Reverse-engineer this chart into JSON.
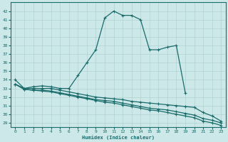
{
  "xlabel": "Humidex (Indice chaleur)",
  "bg_color": "#cce8e8",
  "line_color": "#1a6b6b",
  "grid_color": "#aacccc",
  "xlim": [
    -0.5,
    23.5
  ],
  "ylim": [
    28.5,
    43.0
  ],
  "yticks": [
    29,
    30,
    31,
    32,
    33,
    34,
    35,
    36,
    37,
    38,
    39,
    40,
    41,
    42
  ],
  "xticks": [
    0,
    1,
    2,
    3,
    4,
    5,
    6,
    7,
    8,
    9,
    10,
    11,
    12,
    13,
    14,
    15,
    16,
    17,
    18,
    19,
    20,
    21,
    22,
    23
  ],
  "curve1_x": [
    0,
    1,
    2,
    3,
    4,
    5,
    6,
    7,
    8,
    9,
    10,
    11,
    12,
    13,
    14,
    15,
    16,
    17,
    18,
    19
  ],
  "curve1_y": [
    34,
    33,
    33.2,
    33.3,
    33.2,
    33.0,
    33.0,
    34.5,
    36.0,
    37.5,
    41.2,
    42.0,
    41.5,
    41.5,
    41.0,
    37.5,
    37.5,
    37.8,
    38.0,
    32.5
  ],
  "curve2_x": [
    0,
    1,
    2,
    3,
    4,
    5,
    6,
    7,
    8,
    9,
    10,
    11,
    12,
    13,
    14,
    15,
    16,
    17,
    18,
    19,
    20,
    21,
    22,
    23
  ],
  "curve2_y": [
    33.5,
    33.0,
    33.0,
    33.0,
    33.0,
    32.8,
    32.6,
    32.4,
    32.2,
    32.0,
    31.9,
    31.8,
    31.7,
    31.5,
    31.4,
    31.3,
    31.2,
    31.1,
    31.0,
    30.9,
    30.8,
    30.2,
    29.8,
    29.2
  ],
  "curve3_x": [
    0,
    1,
    2,
    3,
    4,
    5,
    6,
    7,
    8,
    9,
    10,
    11,
    12,
    13,
    14,
    15,
    16,
    17,
    18,
    19,
    20,
    21,
    22,
    23
  ],
  "curve3_y": [
    33.5,
    32.9,
    32.8,
    32.8,
    32.7,
    32.5,
    32.3,
    32.1,
    31.9,
    31.7,
    31.6,
    31.5,
    31.3,
    31.1,
    30.9,
    30.7,
    30.6,
    30.5,
    30.3,
    30.1,
    29.9,
    29.5,
    29.3,
    29.0
  ],
  "curve4_x": [
    0,
    1,
    2,
    3,
    4,
    5,
    6,
    7,
    8,
    9,
    10,
    11,
    12,
    13,
    14,
    15,
    16,
    17,
    18,
    19,
    20,
    21,
    22,
    23
  ],
  "curve4_y": [
    33.5,
    32.9,
    32.8,
    32.7,
    32.6,
    32.4,
    32.2,
    32.0,
    31.8,
    31.6,
    31.4,
    31.3,
    31.1,
    30.9,
    30.7,
    30.5,
    30.4,
    30.2,
    30.0,
    29.8,
    29.6,
    29.2,
    29.0,
    28.7
  ]
}
